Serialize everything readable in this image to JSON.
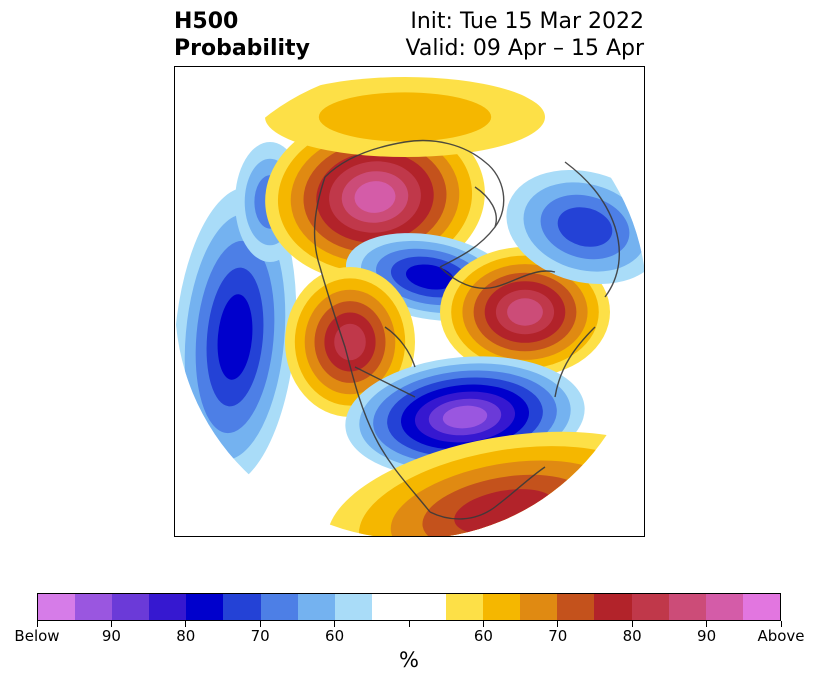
{
  "title": {
    "left_line1": "H500",
    "left_line2": "Probability",
    "right_line1": "Init: Tue 15 Mar 2022",
    "right_line2": "Valid: 09 Apr – 15 Apr"
  },
  "map": {
    "projection": "north-polar-stereographic",
    "below_colors": [
      "#a9dcf8",
      "#74b2f0",
      "#4d7fe6",
      "#2442d6",
      "#0000cc",
      "#3618d0",
      "#6b3ad8",
      "#9a56e0",
      "#d67ce8"
    ],
    "above_colors": [
      "#fde047",
      "#f5b700",
      "#e08a12",
      "#c4521c",
      "#b2232a",
      "#c0384a",
      "#cc4c78",
      "#d45ca8",
      "#e276e0"
    ]
  },
  "colorbar": {
    "colors": [
      "#d67ce8",
      "#9a56e0",
      "#6b3ad8",
      "#3618d0",
      "#0000cc",
      "#2442d6",
      "#4d7fe6",
      "#74b2f0",
      "#a9dcf8",
      "#ffffff",
      "#ffffff",
      "#fde047",
      "#f5b700",
      "#e08a12",
      "#c4521c",
      "#b2232a",
      "#c0384a",
      "#cc4c78",
      "#d45ca8",
      "#e276e0"
    ],
    "tick_labels": [
      "Below",
      "90",
      "80",
      "70",
      "60",
      "",
      "60",
      "70",
      "80",
      "90",
      "Above"
    ],
    "unit": "%"
  }
}
